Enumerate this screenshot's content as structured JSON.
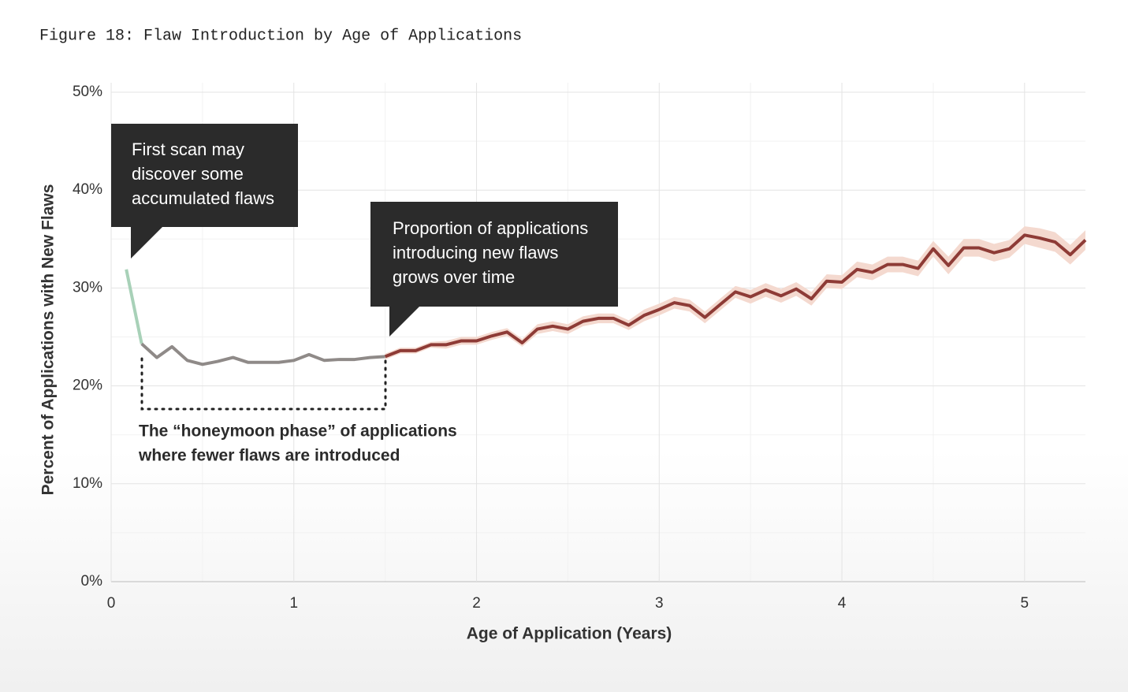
{
  "chart_data": {
    "type": "line",
    "title": "Figure 18: Flaw Introduction by Age of Applications",
    "x_label": "Age of Application (Years)",
    "y_label": "Percent of Applications with New Flaws",
    "xlim": [
      0,
      5.333
    ],
    "xticks": [
      0,
      1,
      2,
      3,
      4,
      5
    ],
    "ylim": [
      0,
      50
    ],
    "yticks": [
      {
        "value": 0,
        "label": "0%"
      },
      {
        "value": 10,
        "label": "10%"
      },
      {
        "value": 20,
        "label": "20%"
      },
      {
        "value": 30,
        "label": "30%"
      },
      {
        "value": 40,
        "label": "40%"
      },
      {
        "value": 50,
        "label": "50%"
      }
    ],
    "grid": true,
    "x_minor_ticks": [
      0.5,
      1.5,
      2.5,
      3.5,
      4.5
    ],
    "y_minor_ticks": [
      5,
      15,
      25,
      35,
      45
    ],
    "x": [
      0.083,
      0.167,
      0.25,
      0.333,
      0.417,
      0.5,
      0.583,
      0.667,
      0.75,
      0.833,
      0.917,
      1,
      1.083,
      1.167,
      1.25,
      1.333,
      1.417,
      1.5,
      1.583,
      1.667,
      1.75,
      1.833,
      1.917,
      2,
      2.083,
      2.167,
      2.25,
      2.333,
      2.417,
      2.5,
      2.583,
      2.667,
      2.75,
      2.833,
      2.917,
      3,
      3.083,
      3.167,
      3.25,
      3.333,
      3.417,
      3.5,
      3.583,
      3.667,
      3.75,
      3.833,
      3.917,
      4,
      4.083,
      4.167,
      4.25,
      4.333,
      4.417,
      4.5,
      4.583,
      4.667,
      4.75,
      4.833,
      4.917,
      5,
      5.083,
      5.167,
      5.25,
      5.333
    ],
    "series": [
      {
        "color": "#a8d1b8",
        "values": [
          31.9,
          24.3,
          null,
          null,
          null,
          null,
          null,
          null,
          null,
          null,
          null,
          null,
          null,
          null,
          null,
          null,
          null,
          null,
          null,
          null,
          null,
          null,
          null,
          null,
          null,
          null,
          null,
          null,
          null,
          null,
          null,
          null,
          null,
          null,
          null,
          null,
          null,
          null,
          null,
          null,
          null,
          null,
          null,
          null,
          null,
          null,
          null,
          null,
          null,
          null,
          null,
          null,
          null,
          null,
          null,
          null,
          null,
          null,
          null,
          null,
          null,
          null,
          null,
          null
        ]
      },
      {
        "color": "#8f8a88",
        "values": [
          null,
          24.3,
          22.9,
          24.0,
          22.6,
          22.2,
          22.5,
          22.9,
          22.4,
          22.4,
          22.4,
          22.6,
          23.2,
          22.6,
          22.7,
          22.7,
          22.9,
          23.0,
          null,
          null,
          null,
          null,
          null,
          null,
          null,
          null,
          null,
          null,
          null,
          null,
          null,
          null,
          null,
          null,
          null,
          null,
          null,
          null,
          null,
          null,
          null,
          null,
          null,
          null,
          null,
          null,
          null,
          null,
          null,
          null,
          null,
          null,
          null,
          null,
          null,
          null,
          null,
          null,
          null,
          null,
          null,
          null,
          null,
          null
        ]
      },
      {
        "color": "#8e3b36",
        "band_color": "#f4d9cf",
        "values": [
          null,
          null,
          null,
          null,
          null,
          null,
          null,
          null,
          null,
          null,
          null,
          null,
          null,
          null,
          null,
          null,
          null,
          23.0,
          23.6,
          23.6,
          24.2,
          24.2,
          24.6,
          24.6,
          25.1,
          25.5,
          24.4,
          25.8,
          26.1,
          25.8,
          26.6,
          26.9,
          26.9,
          26.2,
          27.2,
          27.8,
          28.5,
          28.2,
          27.0,
          28.3,
          29.6,
          29.1,
          29.8,
          29.2,
          29.9,
          28.9,
          30.7,
          30.6,
          31.9,
          31.6,
          32.4,
          32.4,
          32.0,
          34.0,
          32.3,
          34.1,
          34.1,
          33.6,
          34.0,
          35.4,
          35.1,
          34.7,
          33.4,
          34.9
        ],
        "lower": [
          null,
          null,
          null,
          null,
          null,
          null,
          null,
          null,
          null,
          null,
          null,
          null,
          null,
          null,
          null,
          null,
          null,
          22.7,
          23.3,
          23.3,
          23.9,
          23.8,
          24.2,
          24.2,
          24.7,
          25.1,
          24.0,
          25.3,
          25.6,
          25.3,
          26.1,
          26.4,
          26.4,
          25.7,
          26.6,
          27.2,
          27.9,
          27.6,
          26.4,
          27.7,
          29.0,
          28.4,
          29.1,
          28.5,
          29.2,
          28.2,
          30.0,
          29.9,
          31.1,
          30.8,
          31.6,
          31.6,
          31.2,
          33.2,
          31.4,
          33.2,
          33.2,
          32.7,
          33.1,
          34.5,
          34.1,
          33.7,
          32.4,
          33.9
        ],
        "upper": [
          null,
          null,
          null,
          null,
          null,
          null,
          null,
          null,
          null,
          null,
          null,
          null,
          null,
          null,
          null,
          null,
          null,
          23.3,
          23.9,
          23.9,
          24.5,
          24.6,
          25.0,
          25.0,
          25.5,
          25.9,
          24.8,
          26.3,
          26.6,
          26.3,
          27.1,
          27.4,
          27.4,
          26.7,
          27.8,
          28.4,
          29.1,
          28.8,
          27.6,
          28.9,
          30.2,
          29.8,
          30.5,
          29.9,
          30.6,
          29.6,
          31.4,
          31.3,
          32.7,
          32.4,
          33.2,
          33.2,
          32.8,
          34.8,
          33.2,
          35.0,
          35.0,
          34.5,
          34.9,
          36.3,
          36.1,
          35.7,
          34.4,
          35.9
        ]
      }
    ],
    "annotations": [
      {
        "lines": [
          "First scan may",
          "discover some",
          "accumulated flaws"
        ]
      },
      {
        "lines": [
          "Proportion of applications",
          "introducing new flaws",
          "grows over time"
        ]
      },
      {
        "lines": [
          "The “honeymoon phase” of applications",
          "where fewer flaws are introduced"
        ]
      }
    ]
  }
}
